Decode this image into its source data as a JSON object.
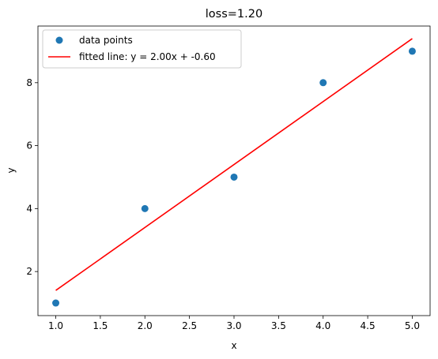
{
  "chart_data": {
    "type": "scatter",
    "title": "loss=1.20",
    "xlabel": "x",
    "ylabel": "y",
    "xlim": [
      0.8,
      5.2
    ],
    "ylim": [
      0.6,
      9.8
    ],
    "xticks": [
      1.0,
      1.5,
      2.0,
      2.5,
      3.0,
      3.5,
      4.0,
      4.5,
      5.0
    ],
    "xtick_labels": [
      "1.0",
      "1.5",
      "2.0",
      "2.5",
      "3.0",
      "3.5",
      "4.0",
      "4.5",
      "5.0"
    ],
    "yticks": [
      2,
      4,
      6,
      8
    ],
    "ytick_labels": [
      "2",
      "4",
      "6",
      "8"
    ],
    "grid": false,
    "legend_position": "top-left",
    "series": [
      {
        "name": "data points",
        "kind": "scatter",
        "color": "#1f77b4",
        "x": [
          1,
          2,
          3,
          4,
          5
        ],
        "y": [
          1,
          4,
          5,
          8,
          9
        ]
      },
      {
        "name": "fitted line: y = 2.00x + -0.60",
        "kind": "line",
        "color": "#ff0000",
        "x": [
          1,
          5
        ],
        "y": [
          1.4,
          9.4
        ]
      }
    ]
  }
}
